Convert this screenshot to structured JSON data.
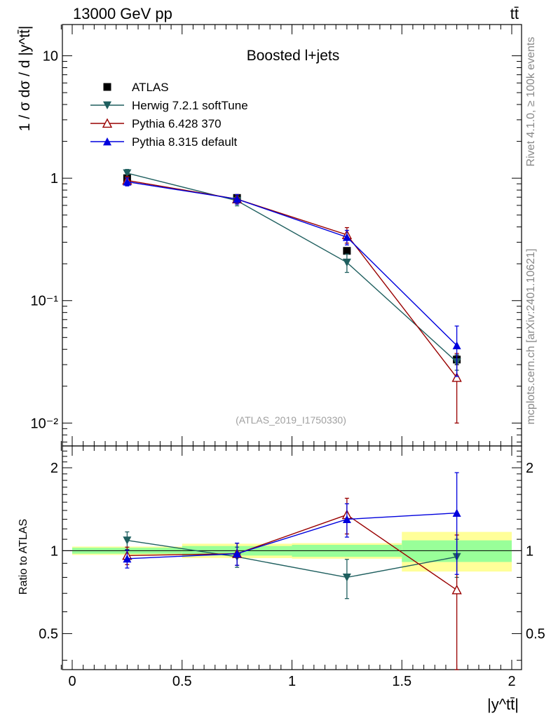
{
  "header": {
    "energy": "13000 GeV pp",
    "process": "tt̄"
  },
  "side_labels": {
    "rivet": "Rivet 4.1.0, ≥ 100k events",
    "mcplots": "mcplots.cern.ch [arXiv:2401.10621]"
  },
  "chart_data": [
    {
      "type": "line",
      "panel": "main",
      "title": "Boosted l+jets",
      "analysis_id": "(ATLAS_2019_I1750330)",
      "ylabel": "1 / σ dσ / d |y^tt̄|",
      "yscale": "log",
      "ylim": [
        0.0065,
        18
      ],
      "xlim": [
        -0.05,
        2.05
      ],
      "ytick_labels": {
        "10": "10",
        "1": "1",
        "0.1": "10⁻¹",
        "0.01": "10⁻²"
      },
      "bins": [
        [
          0,
          0.5
        ],
        [
          0.5,
          1.0
        ],
        [
          1.0,
          1.5
        ],
        [
          1.5,
          2.0
        ]
      ],
      "x": [
        0.25,
        0.75,
        1.25,
        1.75
      ],
      "series": [
        {
          "name": "ATLAS",
          "color": "#000000",
          "marker": "square",
          "values": [
            1.0,
            0.69,
            0.255,
            0.033
          ],
          "err": [
            0.04,
            0.03,
            0.012,
            0.003
          ]
        },
        {
          "name": "Herwig 7.2.1 softTune",
          "color": "#1f5f5f",
          "marker": "triangle-down",
          "values": [
            1.1,
            0.655,
            0.205,
            0.0315
          ],
          "err": [
            0.08,
            0.06,
            0.035,
            0.0045
          ]
        },
        {
          "name": "Pythia 6.428 370",
          "color": "#990000",
          "marker": "triangle-up-open",
          "values": [
            0.96,
            0.675,
            0.345,
            0.0235
          ],
          "err": [
            0.07,
            0.06,
            0.05,
            0.0135
          ]
        },
        {
          "name": "Pythia 8.315 default",
          "color": "#0000dd",
          "marker": "triangle-up",
          "values": [
            0.935,
            0.675,
            0.33,
            0.043
          ],
          "err": [
            0.07,
            0.06,
            0.045,
            0.019
          ]
        }
      ]
    },
    {
      "type": "line",
      "panel": "ratio",
      "ylabel": "Ratio to ATLAS",
      "xlabel": "|y^tt̄|",
      "ylim": [
        0.37,
        2.4
      ],
      "yticks": [
        0.5,
        1,
        2
      ],
      "ytick_labels": [
        "0.5",
        "1",
        "2"
      ],
      "xticks": [
        0,
        0.5,
        1,
        1.5,
        2
      ],
      "xtick_labels": [
        "0",
        "0.5",
        "1",
        "1.5",
        "2"
      ],
      "reference": 1,
      "bands": [
        {
          "bin": [
            0,
            0.5
          ],
          "inner": [
            0.975,
            1.025
          ],
          "outer": [
            0.965,
            1.035
          ]
        },
        {
          "bin": [
            0.5,
            1.0
          ],
          "inner": [
            0.96,
            1.04
          ],
          "outer": [
            0.94,
            1.06
          ]
        },
        {
          "bin": [
            1.0,
            1.5
          ],
          "inner": [
            0.95,
            1.05
          ],
          "outer": [
            0.935,
            1.065
          ]
        },
        {
          "bin": [
            1.5,
            2.0
          ],
          "inner": [
            0.91,
            1.09
          ],
          "outer": [
            0.84,
            1.17
          ]
        }
      ],
      "x": [
        0.25,
        0.75,
        1.25,
        1.75
      ],
      "series": [
        {
          "name": "Herwig 7.2.1 softTune",
          "color": "#1f5f5f",
          "marker": "triangle-down",
          "values": [
            1.09,
            0.95,
            0.8,
            0.95
          ],
          "err": [
            0.08,
            0.08,
            0.13,
            0.15
          ]
        },
        {
          "name": "Pythia 6.428 370",
          "color": "#990000",
          "marker": "triangle-up-open",
          "values": [
            0.96,
            0.975,
            1.35,
            0.72
          ],
          "err": [
            0.07,
            0.09,
            0.2,
            0.42
          ]
        },
        {
          "name": "Pythia 8.315 default",
          "color": "#0000dd",
          "marker": "triangle-up",
          "values": [
            0.935,
            0.975,
            1.3,
            1.37
          ],
          "err": [
            0.07,
            0.09,
            0.18,
            0.55
          ]
        }
      ]
    }
  ]
}
